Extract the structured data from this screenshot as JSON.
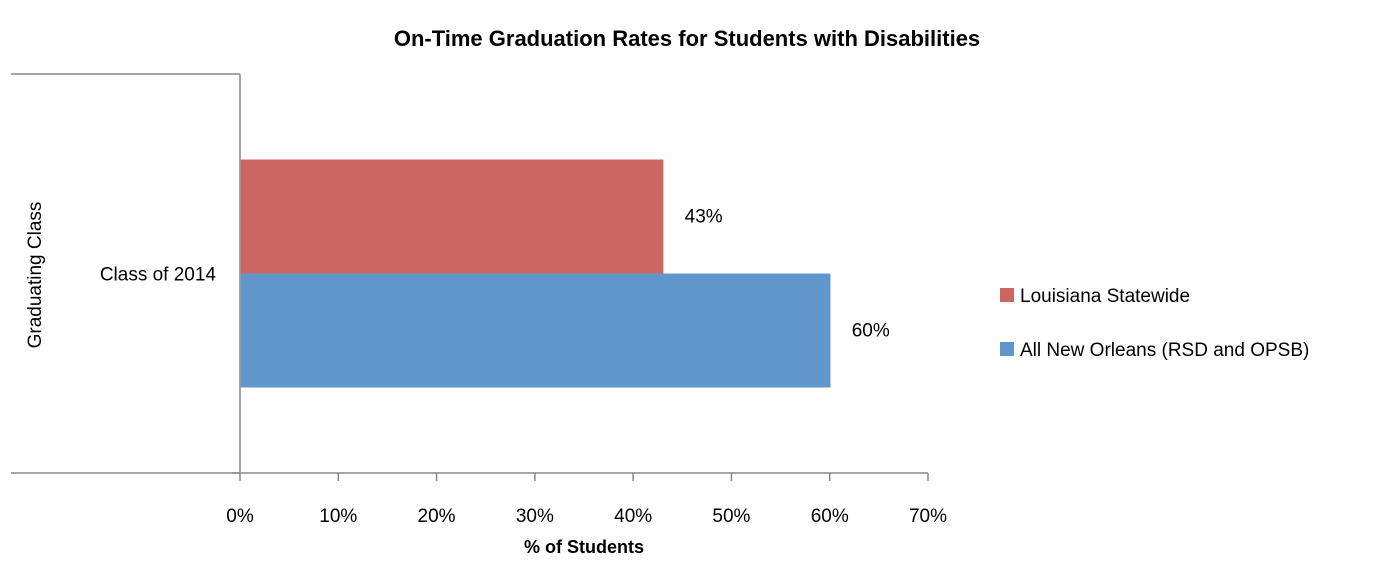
{
  "chart_data": {
    "type": "bar",
    "orientation": "horizontal",
    "title": "On-Time Graduation Rates for Students with Disabilities",
    "xlabel": "% of Students",
    "ylabel": "Graduating Class",
    "categories": [
      "Class of 2014"
    ],
    "xlim": [
      0,
      70
    ],
    "x_ticks": [
      0,
      10,
      20,
      30,
      40,
      50,
      60,
      70
    ],
    "x_tick_labels": [
      "0%",
      "10%",
      "20%",
      "30%",
      "40%",
      "50%",
      "60%",
      "70%"
    ],
    "grid": false,
    "legend_position": "right",
    "series": [
      {
        "name": "Louisiana Statewide",
        "values": [
          43
        ],
        "labels": [
          "43%"
        ],
        "color": "#CC6660"
      },
      {
        "name": "All New Orleans (RSD and OPSB)",
        "values": [
          60
        ],
        "labels": [
          "60%"
        ],
        "color": "#6196CB"
      }
    ]
  }
}
